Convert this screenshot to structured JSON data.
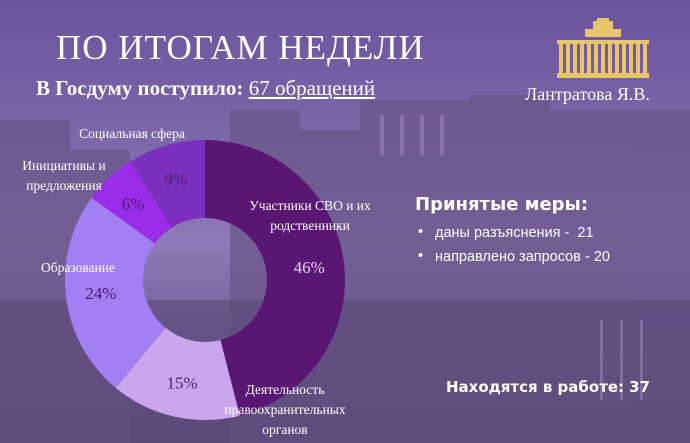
{
  "header": {
    "title": "ПО ИТОГАМ НЕДЕЛИ",
    "subtitle_prefix": "В Госдуму поступило: ",
    "subtitle_value": "67 обращений"
  },
  "logo": {
    "icon": "parliament-building-icon",
    "color": "#e8c56a"
  },
  "author": "Лантратова Я.В.",
  "measures": {
    "title": "Принятые меры:",
    "items": [
      {
        "label": "даны разъяснения -",
        "value": "21"
      },
      {
        "label": "направлено запросов -",
        "value": "20"
      }
    ]
  },
  "in_work": {
    "label": "Находятся в работе:",
    "value": "37"
  },
  "chart_data": {
    "type": "pie",
    "donut": true,
    "unit": "%",
    "categories": [
      "Участники СВО и их родственники",
      "Деятельность правоохранительных органов",
      "Образование",
      "Инициативы и предложения",
      "Социальная сфера"
    ],
    "values": [
      46,
      15,
      24,
      6,
      9
    ],
    "value_labels": [
      "46%",
      "15%",
      "24%",
      "6%",
      "9%"
    ],
    "colors": [
      "#5a1673",
      "#c9a6ee",
      "#a27ff2",
      "#9a2be8",
      "#7a30bd"
    ],
    "label_lines": [
      [
        "Участники СВО и их",
        "родственники"
      ],
      [
        "Деятельность",
        "правоохранительных",
        "органов"
      ],
      [
        "Образование"
      ],
      [
        "Инициативы и",
        "предложения"
      ],
      [
        "Социальная сфера"
      ]
    ],
    "legend": "none"
  }
}
